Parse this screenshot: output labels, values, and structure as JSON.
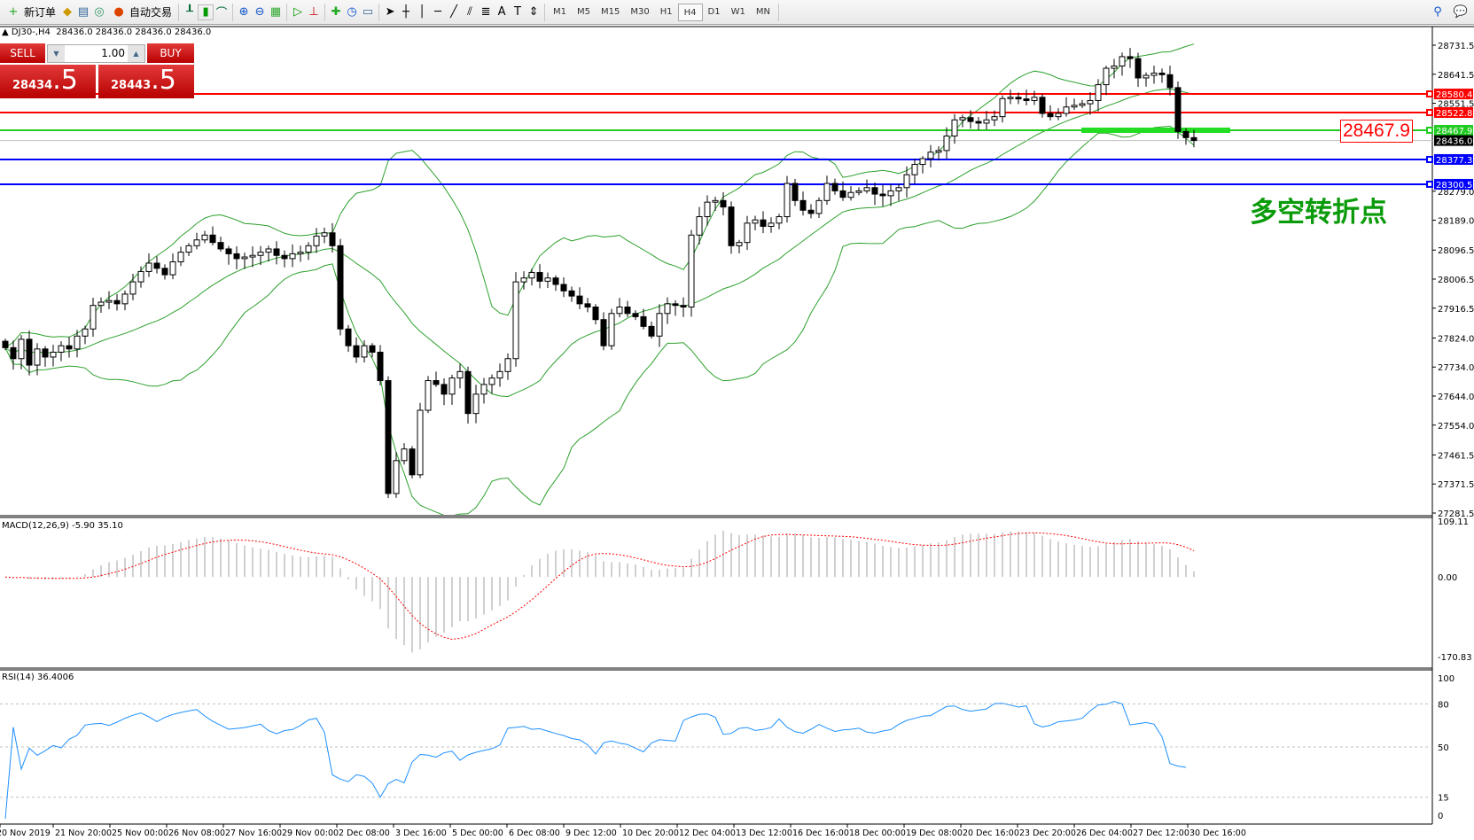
{
  "toolbar": {
    "new_order": "新订单",
    "auto_trading": "自动交易",
    "timeframes": [
      "M1",
      "M5",
      "M15",
      "M30",
      "H1",
      "H4",
      "D1",
      "W1",
      "MN"
    ],
    "active_timeframe": "H4",
    "icons": [
      "new-order-icon",
      "market-watch-icon",
      "navigator-icon",
      "signals-icon",
      "auto-trading-icon",
      "bar-chart-icon",
      "candlestick-icon",
      "line-chart-icon",
      "zoom-in-icon",
      "zoom-out-icon",
      "tile-windows-icon",
      "auto-scroll-icon",
      "chart-shift-icon",
      "indicators-icon",
      "periods-icon",
      "templates-icon",
      "cursor-icon",
      "crosshair-icon",
      "vertical-line-icon",
      "horizontal-line-icon",
      "trendline-icon",
      "equidistant-channel-icon",
      "fibonacci-icon",
      "text-icon",
      "text-label-icon",
      "arrows-icon",
      "search-icon",
      "chat-icon"
    ]
  },
  "chart_header": "DJ30-,H4  28436.0 28436.0 28436.0 28436.0",
  "trade_panel": {
    "sell_label": "SELL",
    "buy_label": "BUY",
    "lot": "1.00",
    "sell_big": "28434",
    "sell_frac": ".5",
    "buy_big": "28443",
    "buy_frac": ".5"
  },
  "price_lines": [
    {
      "value": 28580.4,
      "label": "28580.4",
      "color": "#ff0000"
    },
    {
      "value": 28522.8,
      "label": "28522.8",
      "color": "#ff0000"
    },
    {
      "value": 28467.9,
      "label": "28467.9",
      "color": "#22cc22"
    },
    {
      "value": 28377.3,
      "label": "28377.3",
      "color": "#0000ff"
    },
    {
      "value": 28300.5,
      "label": "28300.5",
      "color": "#0000ff"
    }
  ],
  "current_price": {
    "value": 28436.0,
    "label": "28436.0"
  },
  "marked_level": "28467.9",
  "annotation": "多空转折点",
  "price_axis": [
    "28731.5",
    "28641.5",
    "28551.5",
    "28279.0",
    "28189.0",
    "28096.5",
    "28006.5",
    "27916.5",
    "27824.0",
    "27734.0",
    "27644.0",
    "27554.0",
    "27461.5",
    "27371.5",
    "27281.5"
  ],
  "price_range": [
    27281.5,
    28731.5
  ],
  "time_axis": [
    "20 Nov 2019",
    "21 Nov 20:00",
    "25 Nov 00:00",
    "26 Nov 08:00",
    "27 Nov 16:00",
    "29 Nov 00:00",
    "2 Dec 08:00",
    "3 Dec 16:00",
    "5 Dec 00:00",
    "6 Dec 08:00",
    "9 Dec 12:00",
    "10 Dec 20:00",
    "12 Dec 04:00",
    "13 Dec 12:00",
    "16 Dec 16:00",
    "18 Dec 00:00",
    "19 Dec 08:00",
    "20 Dec 16:00",
    "23 Dec 20:00",
    "26 Dec 04:00",
    "27 Dec 12:00",
    "30 Dec 16:00"
  ],
  "macd": {
    "label": "MACD(12,26,9) -5.90 35.10",
    "axis": [
      "109.11",
      "0.00",
      "-170.83"
    ],
    "range": [
      -170.83,
      109.11
    ],
    "hist_color": "#c0c0c0",
    "signal_color": "#ff0000"
  },
  "rsi": {
    "label": "RSI(14) 36.4006",
    "axis": [
      "100",
      "80",
      "50",
      "15",
      "0"
    ],
    "levels": [
      80,
      50,
      15
    ],
    "color": "#1e90ff"
  },
  "band_color": "#2ca02c",
  "closes": [
    27794,
    27760,
    27820,
    27740,
    27790,
    27765,
    27780,
    27800,
    27790,
    27830,
    27852,
    27925,
    27935,
    27940,
    27930,
    27960,
    27998,
    28030,
    28056,
    28040,
    28020,
    28060,
    28090,
    28110,
    28128,
    28143,
    28120,
    28100,
    28085,
    28070,
    28075,
    28080,
    28090,
    28100,
    28080,
    28070,
    28085,
    28090,
    28110,
    28140,
    28150,
    28110,
    27852,
    27800,
    27765,
    27800,
    27780,
    27692,
    27342,
    27444,
    27480,
    27400,
    27600,
    27692,
    27680,
    27650,
    27700,
    27720,
    27590,
    27650,
    27680,
    27700,
    27720,
    27760,
    27998,
    28010,
    28027,
    28000,
    28010,
    27990,
    27970,
    27954,
    27930,
    27920,
    27881,
    27800,
    27900,
    27920,
    27900,
    27890,
    27860,
    27830,
    27900,
    27930,
    27925,
    27920,
    28143,
    28200,
    28245,
    28250,
    28230,
    28110,
    28120,
    28180,
    28190,
    28170,
    28180,
    28200,
    28303,
    28250,
    28220,
    28210,
    28250,
    28303,
    28280,
    28260,
    28275,
    28280,
    28290,
    28270,
    28265,
    28280,
    28290,
    28330,
    28362,
    28380,
    28400,
    28405,
    28450,
    28500,
    28507,
    28495,
    28490,
    28500,
    28510,
    28566,
    28570,
    28565,
    28560,
    28570,
    28520,
    28510,
    28520,
    28540,
    28545,
    28550,
    28560,
    28609,
    28660,
    28667,
    28696,
    28690,
    28630,
    28638,
    28645,
    28640,
    28600,
    28464,
    28445,
    28436
  ]
}
